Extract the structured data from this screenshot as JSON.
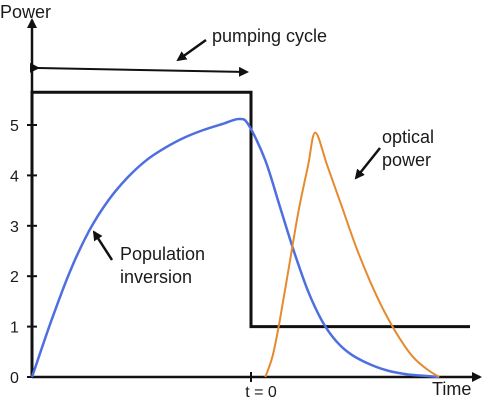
{
  "chart_data": {
    "type": "line",
    "ylabel": "Power",
    "xlabel": "Time",
    "yticks": [
      "0",
      "1",
      "2",
      "3",
      "4",
      "5"
    ],
    "xtick_label": "t = 0",
    "ylim": [
      0,
      6
    ],
    "xlim": [
      -4.6,
      4.6
    ],
    "grid": false,
    "colors": {
      "axes": "#111111",
      "pump": "#111111",
      "population": "#4f6fe0",
      "optical": "#e58a2e"
    },
    "series": [
      {
        "name": "Pumping",
        "points": [
          [
            -4.6,
            0
          ],
          [
            -4.6,
            5.65
          ],
          [
            0,
            5.65
          ],
          [
            0,
            1.0
          ],
          [
            4.6,
            1.0
          ]
        ]
      },
      {
        "name": "Population inversion",
        "points": [
          [
            -4.6,
            0
          ],
          [
            -4.2,
            1.1
          ],
          [
            -3.8,
            2.1
          ],
          [
            -3.4,
            2.9
          ],
          [
            -3.0,
            3.5
          ],
          [
            -2.6,
            3.95
          ],
          [
            -2.2,
            4.3
          ],
          [
            -1.8,
            4.55
          ],
          [
            -1.4,
            4.75
          ],
          [
            -1.0,
            4.9
          ],
          [
            -0.6,
            5.02
          ],
          [
            -0.25,
            5.12
          ],
          [
            -0.05,
            5.0
          ],
          [
            0.3,
            4.3
          ],
          [
            0.6,
            3.4
          ],
          [
            0.9,
            2.5
          ],
          [
            1.2,
            1.7
          ],
          [
            1.5,
            1.1
          ],
          [
            1.8,
            0.7
          ],
          [
            2.1,
            0.45
          ],
          [
            2.5,
            0.25
          ],
          [
            2.9,
            0.12
          ],
          [
            3.3,
            0.05
          ],
          [
            3.7,
            0.02
          ],
          [
            3.95,
            0
          ]
        ]
      },
      {
        "name": "Optical power",
        "points": [
          [
            0.3,
            0
          ],
          [
            0.45,
            0.4
          ],
          [
            0.6,
            1.1
          ],
          [
            0.8,
            2.2
          ],
          [
            1.0,
            3.3
          ],
          [
            1.2,
            4.2
          ],
          [
            1.35,
            4.85
          ],
          [
            1.6,
            4.2
          ],
          [
            1.9,
            3.4
          ],
          [
            2.2,
            2.6
          ],
          [
            2.5,
            1.9
          ],
          [
            2.8,
            1.3
          ],
          [
            3.1,
            0.8
          ],
          [
            3.4,
            0.4
          ],
          [
            3.7,
            0.15
          ],
          [
            3.95,
            0
          ]
        ]
      }
    ],
    "annotations": {
      "pumping_cycle": "pumping cycle",
      "optical_line1": "optical",
      "optical_line2": "power",
      "population_line1": "Population",
      "population_line2": "inversion"
    }
  }
}
